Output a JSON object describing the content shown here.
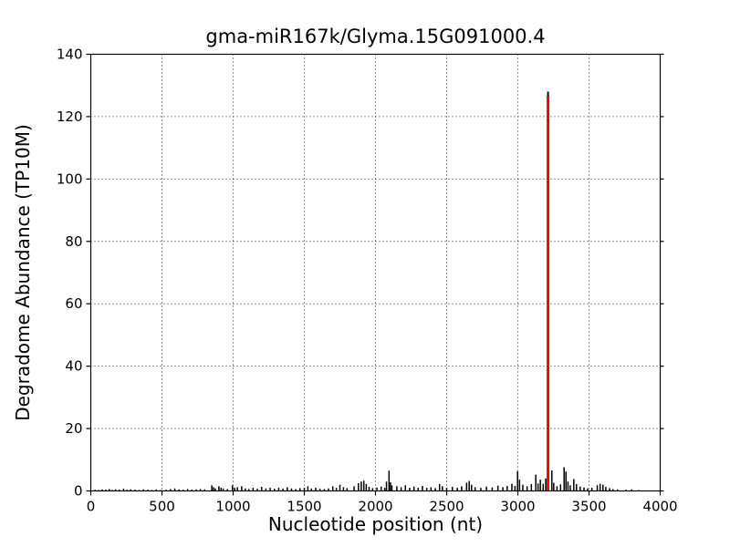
{
  "figure": {
    "background": "#ffffff"
  },
  "chart_data": {
    "type": "bar",
    "subtype": "stem-spike-plot",
    "title": "gma-miR167k/Glyma.15G091000.4",
    "xlabel": "Nucleotide position (nt)",
    "ylabel": "Degradome Abundance (TP10M)",
    "xlim": [
      0,
      4000
    ],
    "ylim": [
      0,
      140
    ],
    "xticks": [
      0,
      500,
      1000,
      1500,
      2000,
      2500,
      3000,
      3500,
      4000
    ],
    "yticks": [
      0,
      20,
      40,
      60,
      80,
      100,
      120,
      140
    ],
    "grid": true,
    "grid_style": "dotted",
    "legend": "none",
    "colors": {
      "axes": "#000000",
      "grid": "#000000",
      "background_series": "#000000",
      "signature_peak": "#ff0000"
    },
    "signature_peak": {
      "position": 3212,
      "value": 126.7,
      "black_tip_value": 128
    },
    "background_peaks": [
      [
        30,
        0.4
      ],
      [
        55,
        0.3
      ],
      [
        80,
        0.5
      ],
      [
        105,
        0.4
      ],
      [
        130,
        0.6
      ],
      [
        150,
        0.3
      ],
      [
        175,
        0.5
      ],
      [
        200,
        0.4
      ],
      [
        230,
        0.7
      ],
      [
        255,
        0.4
      ],
      [
        280,
        0.5
      ],
      [
        310,
        0.4
      ],
      [
        340,
        0.3
      ],
      [
        370,
        0.5
      ],
      [
        400,
        0.4
      ],
      [
        430,
        0.3
      ],
      [
        460,
        0.5
      ],
      [
        490,
        0.3
      ],
      [
        530,
        0.4
      ],
      [
        560,
        0.6
      ],
      [
        590,
        0.8
      ],
      [
        620,
        0.5
      ],
      [
        650,
        0.4
      ],
      [
        680,
        0.6
      ],
      [
        710,
        0.4
      ],
      [
        740,
        0.5
      ],
      [
        770,
        0.6
      ],
      [
        800,
        0.5
      ],
      [
        850,
        1.8
      ],
      [
        862,
        1.2
      ],
      [
        875,
        0.8
      ],
      [
        900,
        1.5
      ],
      [
        915,
        1.0
      ],
      [
        930,
        0.8
      ],
      [
        960,
        0.6
      ],
      [
        995,
        1.8
      ],
      [
        1010,
        1.0
      ],
      [
        1030,
        1.2
      ],
      [
        1060,
        1.5
      ],
      [
        1085,
        0.8
      ],
      [
        1110,
        0.6
      ],
      [
        1140,
        1.0
      ],
      [
        1170,
        0.7
      ],
      [
        1200,
        1.3
      ],
      [
        1230,
        0.8
      ],
      [
        1260,
        1.0
      ],
      [
        1290,
        0.7
      ],
      [
        1320,
        1.0
      ],
      [
        1350,
        0.7
      ],
      [
        1380,
        1.2
      ],
      [
        1410,
        0.8
      ],
      [
        1440,
        0.6
      ],
      [
        1470,
        0.9
      ],
      [
        1500,
        1.0
      ],
      [
        1525,
        1.5
      ],
      [
        1550,
        0.8
      ],
      [
        1580,
        1.0
      ],
      [
        1610,
        0.7
      ],
      [
        1640,
        0.6
      ],
      [
        1670,
        0.8
      ],
      [
        1700,
        1.5
      ],
      [
        1725,
        1.0
      ],
      [
        1750,
        2.0
      ],
      [
        1775,
        1.2
      ],
      [
        1800,
        0.9
      ],
      [
        1850,
        1.5
      ],
      [
        1880,
        2.5
      ],
      [
        1900,
        3.0
      ],
      [
        1918,
        3.3
      ],
      [
        1935,
        2.2
      ],
      [
        1955,
        1.3
      ],
      [
        1980,
        0.9
      ],
      [
        2010,
        1.1
      ],
      [
        2040,
        1.4
      ],
      [
        2065,
        1.0
      ],
      [
        2077,
        3.0
      ],
      [
        2095,
        6.5
      ],
      [
        2105,
        2.8
      ],
      [
        2115,
        1.8
      ],
      [
        2150,
        1.5
      ],
      [
        2180,
        1.2
      ],
      [
        2210,
        1.8
      ],
      [
        2240,
        1.0
      ],
      [
        2270,
        1.4
      ],
      [
        2300,
        1.0
      ],
      [
        2330,
        1.6
      ],
      [
        2360,
        1.0
      ],
      [
        2390,
        1.2
      ],
      [
        2420,
        0.9
      ],
      [
        2450,
        2.2
      ],
      [
        2470,
        1.5
      ],
      [
        2500,
        1.0
      ],
      [
        2540,
        1.3
      ],
      [
        2575,
        1.0
      ],
      [
        2605,
        1.5
      ],
      [
        2640,
        2.6
      ],
      [
        2658,
        3.2
      ],
      [
        2675,
        2.0
      ],
      [
        2700,
        1.2
      ],
      [
        2740,
        1.0
      ],
      [
        2780,
        1.4
      ],
      [
        2820,
        1.1
      ],
      [
        2860,
        1.7
      ],
      [
        2895,
        1.2
      ],
      [
        2925,
        1.6
      ],
      [
        2958,
        2.3
      ],
      [
        2980,
        1.6
      ],
      [
        2998,
        6.3
      ],
      [
        3012,
        3.6
      ],
      [
        3035,
        2.0
      ],
      [
        3065,
        1.5
      ],
      [
        3095,
        2.2
      ],
      [
        3126,
        5.2
      ],
      [
        3142,
        2.4
      ],
      [
        3158,
        3.6
      ],
      [
        3178,
        2.3
      ],
      [
        3196,
        4.0
      ],
      [
        3239,
        6.6
      ],
      [
        3252,
        2.6
      ],
      [
        3275,
        1.5
      ],
      [
        3300,
        2.1
      ],
      [
        3325,
        7.6
      ],
      [
        3338,
        6.2
      ],
      [
        3352,
        3.0
      ],
      [
        3368,
        1.8
      ],
      [
        3393,
        3.8
      ],
      [
        3412,
        2.2
      ],
      [
        3438,
        1.4
      ],
      [
        3465,
        1.1
      ],
      [
        3490,
        0.8
      ],
      [
        3520,
        1.0
      ],
      [
        3558,
        1.8
      ],
      [
        3578,
        2.3
      ],
      [
        3598,
        2.0
      ],
      [
        3618,
        1.3
      ],
      [
        3645,
        0.9
      ],
      [
        3668,
        0.6
      ],
      [
        3700,
        0.5
      ],
      [
        3760,
        0.4
      ],
      [
        3800,
        0.5
      ],
      [
        3850,
        0.3
      ]
    ]
  }
}
